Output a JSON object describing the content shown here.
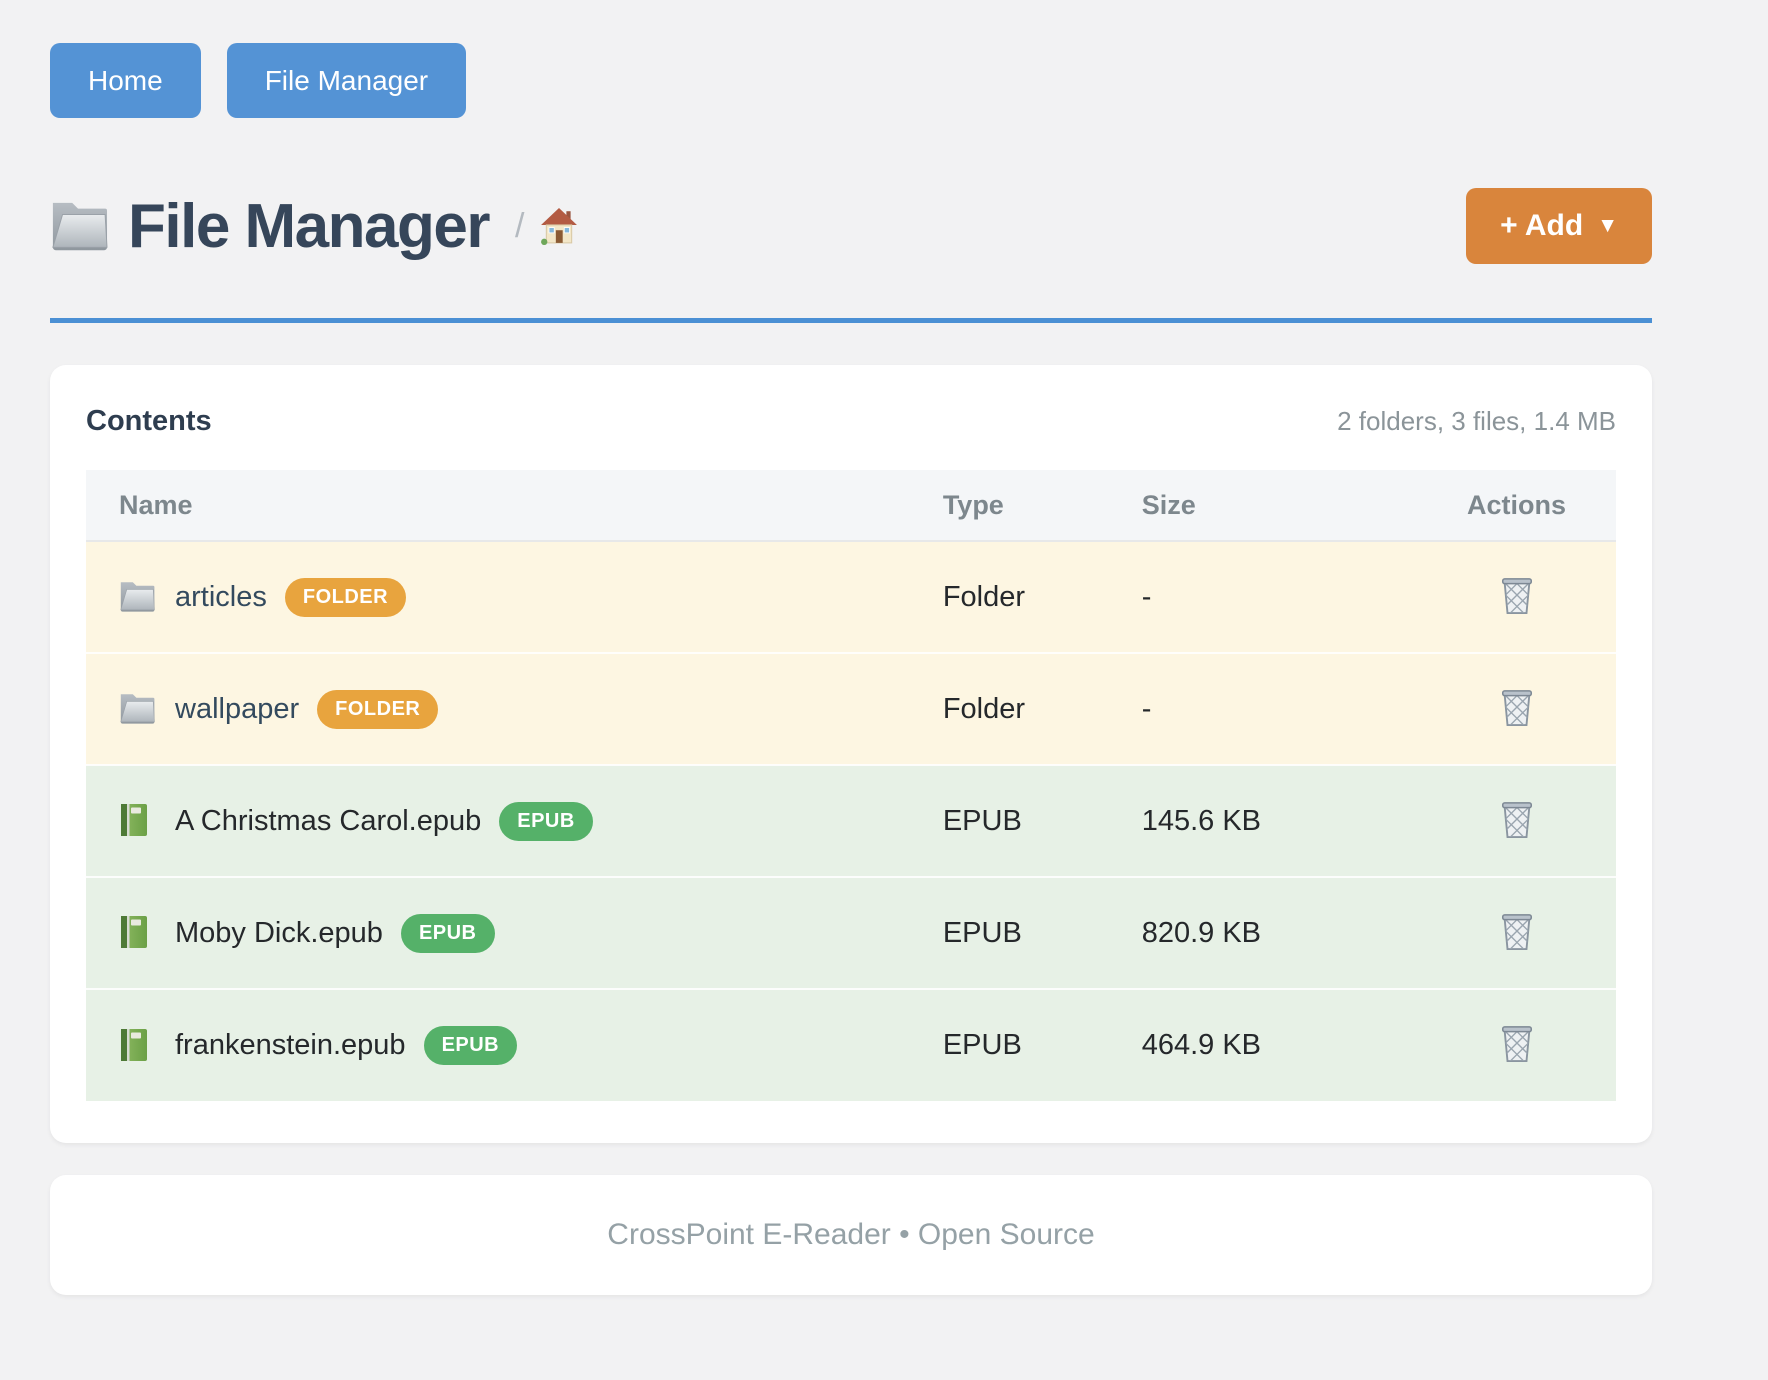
{
  "nav": {
    "items": [
      {
        "label": "Home"
      },
      {
        "label": "File Manager"
      }
    ]
  },
  "header": {
    "title": "File Manager",
    "title_icon": "folder-icon",
    "breadcrumb_separator": "/",
    "breadcrumb_home_icon": "house-icon",
    "add_button": {
      "label": "+ Add",
      "caret": "▼"
    }
  },
  "colors": {
    "nav_blue": "#5493d5",
    "divider_blue": "#4b90d4",
    "add_orange": "#d9853c",
    "folder_badge": "#e8a43e",
    "epub_badge": "#55b169",
    "folder_row_bg": "#fdf6e2",
    "epub_row_bg": "#e7f1e6"
  },
  "contents": {
    "heading": "Contents",
    "summary": "2 folders, 3 files, 1.4 MB",
    "columns": [
      "Name",
      "Type",
      "Size",
      "Actions"
    ],
    "rows": [
      {
        "name": "articles",
        "badge": "FOLDER",
        "type": "Folder",
        "size": "-",
        "kind": "folder",
        "icon": "folder-icon",
        "action_icon": "trash-icon"
      },
      {
        "name": "wallpaper",
        "badge": "FOLDER",
        "type": "Folder",
        "size": "-",
        "kind": "folder",
        "icon": "folder-icon",
        "action_icon": "trash-icon"
      },
      {
        "name": "A Christmas Carol.epub",
        "badge": "EPUB",
        "type": "EPUB",
        "size": "145.6 KB",
        "kind": "epub",
        "icon": "book-icon",
        "action_icon": "trash-icon"
      },
      {
        "name": "Moby Dick.epub",
        "badge": "EPUB",
        "type": "EPUB",
        "size": "820.9 KB",
        "kind": "epub",
        "icon": "book-icon",
        "action_icon": "trash-icon"
      },
      {
        "name": "frankenstein.epub",
        "badge": "EPUB",
        "type": "EPUB",
        "size": "464.9 KB",
        "kind": "epub",
        "icon": "book-icon",
        "action_icon": "trash-icon"
      }
    ]
  },
  "footer": {
    "text": "CrossPoint E-Reader • Open Source"
  }
}
